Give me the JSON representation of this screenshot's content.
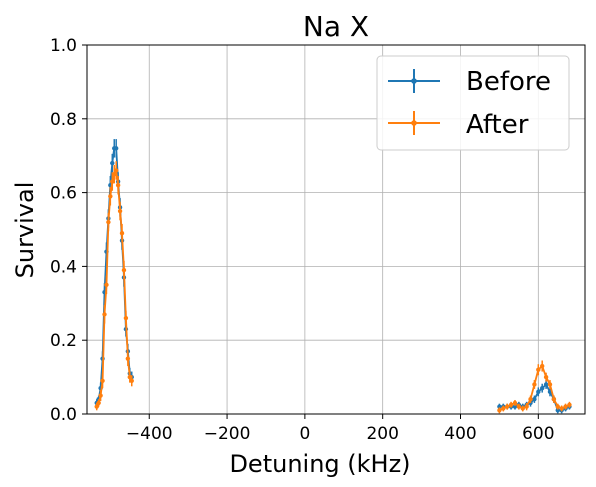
{
  "chart_data": {
    "type": "line",
    "title": "Na X",
    "xlabel": "Detuning (kHz)",
    "ylabel": "Survival",
    "xlim": [
      -560,
      720
    ],
    "ylim": [
      0,
      1.0
    ],
    "xticks": [
      -400,
      -200,
      0,
      200,
      400,
      600
    ],
    "xtick_labels": [
      "−400",
      "−200",
      "0",
      "200",
      "400",
      "600"
    ],
    "yticks": [
      0.0,
      0.2,
      0.4,
      0.6,
      0.8,
      1.0
    ],
    "ytick_labels": [
      "0.0",
      "0.2",
      "0.4",
      "0.6",
      "0.8",
      "1.0"
    ],
    "grid": true,
    "legend_position": "top-right",
    "series": [
      {
        "name": "Before",
        "color": "#1f77b4",
        "segments": [
          {
            "x": [
              -535,
              -530,
              -525,
              -520,
              -515,
              -510,
              -505,
              -500,
              -495,
              -490,
              -485,
              -480,
              -475,
              -470,
              -465,
              -460,
              -455,
              -450,
              -445
            ],
            "y": [
              0.03,
              0.04,
              0.07,
              0.15,
              0.33,
              0.44,
              0.53,
              0.62,
              0.68,
              0.72,
              0.72,
              0.63,
              0.56,
              0.47,
              0.37,
              0.23,
              0.17,
              0.11,
              0.1
            ],
            "err": [
              0.01,
              0.01,
              0.015,
              0.02,
              0.025,
              0.025,
              0.025,
              0.025,
              0.025,
              0.025,
              0.025,
              0.025,
              0.025,
              0.025,
              0.025,
              0.02,
              0.02,
              0.015,
              0.015
            ]
          },
          {
            "x": [
              500,
              510,
              520,
              530,
              540,
              550,
              560,
              570,
              580,
              590,
              600,
              610,
              620,
              630,
              640,
              650,
              660,
              670,
              680
            ],
            "y": [
              0.02,
              0.02,
              0.02,
              0.02,
              0.02,
              0.025,
              0.02,
              0.025,
              0.03,
              0.04,
              0.06,
              0.07,
              0.08,
              0.06,
              0.04,
              0.01,
              0.01,
              0.015,
              0.02
            ],
            "err": [
              0.008,
              0.008,
              0.008,
              0.008,
              0.008,
              0.008,
              0.008,
              0.008,
              0.01,
              0.01,
              0.012,
              0.012,
              0.012,
              0.012,
              0.01,
              0.008,
              0.008,
              0.008,
              0.008
            ]
          }
        ]
      },
      {
        "name": "After",
        "color": "#ff7f0e",
        "segments": [
          {
            "x": [
              -535,
              -530,
              -525,
              -520,
              -515,
              -510,
              -505,
              -500,
              -495,
              -490,
              -485,
              -480,
              -475,
              -470,
              -465,
              -460,
              -455,
              -450,
              -445
            ],
            "y": [
              0.02,
              0.03,
              0.05,
              0.09,
              0.27,
              0.35,
              0.52,
              0.59,
              0.63,
              0.65,
              0.66,
              0.62,
              0.55,
              0.49,
              0.39,
              0.26,
              0.15,
              0.1,
              0.09
            ],
            "err": [
              0.01,
              0.01,
              0.015,
              0.02,
              0.025,
              0.025,
              0.025,
              0.025,
              0.025,
              0.025,
              0.025,
              0.025,
              0.025,
              0.025,
              0.025,
              0.02,
              0.02,
              0.015,
              0.015
            ]
          },
          {
            "x": [
              500,
              510,
              520,
              530,
              540,
              550,
              560,
              570,
              580,
              590,
              600,
              610,
              620,
              630,
              640,
              650,
              660,
              670,
              680
            ],
            "y": [
              0.01,
              0.015,
              0.02,
              0.025,
              0.03,
              0.02,
              0.015,
              0.02,
              0.04,
              0.08,
              0.12,
              0.13,
              0.1,
              0.08,
              0.04,
              0.02,
              0.015,
              0.02,
              0.025
            ],
            "err": [
              0.008,
              0.008,
              0.008,
              0.008,
              0.008,
              0.008,
              0.008,
              0.01,
              0.01,
              0.012,
              0.015,
              0.015,
              0.012,
              0.012,
              0.01,
              0.008,
              0.008,
              0.008,
              0.008
            ]
          }
        ]
      }
    ]
  }
}
